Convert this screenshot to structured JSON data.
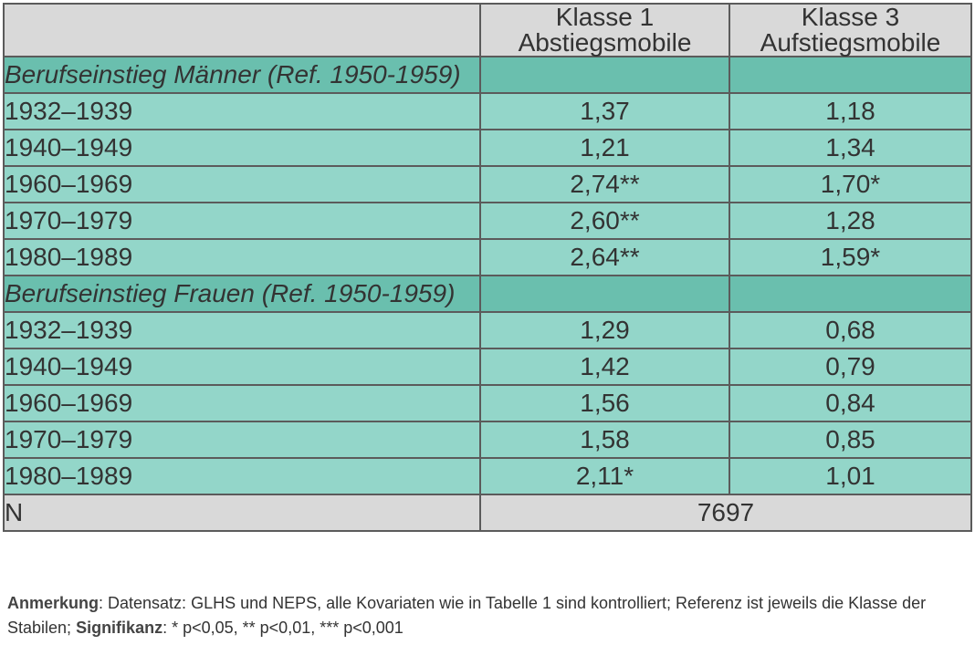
{
  "table": {
    "header": {
      "col1_line1": "Klasse 1",
      "col1_line2": "Abstiegsmobile",
      "col2_line1": "Klasse 3",
      "col2_line2": "Aufstiegsmobile"
    },
    "sections": [
      {
        "title": "Berufseinstieg Männer (Ref. 1950-1959)",
        "rows": [
          {
            "label": "1932–1939",
            "k1": "1,37",
            "k3": "1,18"
          },
          {
            "label": "1940–1949",
            "k1": "1,21",
            "k3": "1,34"
          },
          {
            "label": "1960–1969",
            "k1": "2,74**",
            "k3": "1,70*"
          },
          {
            "label": "1970–1979",
            "k1": "2,60**",
            "k3": "1,28"
          },
          {
            "label": "1980–1989",
            "k1": "2,64**",
            "k3": "1,59*"
          }
        ]
      },
      {
        "title": "Berufseinstieg Frauen (Ref. 1950-1959)",
        "rows": [
          {
            "label": "1932–1939",
            "k1": "1,29",
            "k3": "0,68"
          },
          {
            "label": "1940–1949",
            "k1": "1,42",
            "k3": "0,79"
          },
          {
            "label": "1960–1969",
            "k1": "1,56",
            "k3": "0,84"
          },
          {
            "label": "1970–1979",
            "k1": "1,58",
            "k3": "0,85"
          },
          {
            "label": "1980–1989",
            "k1": "2,11*",
            "k3": "1,01"
          }
        ]
      }
    ],
    "n_row": {
      "label": "N",
      "value": "7697"
    }
  },
  "note": {
    "anmerkung_label": "Anmerkung",
    "anmerkung_text": ": Datensatz: GLHS und NEPS, alle Kovariaten wie in Tabelle 1 sind kontrolliert; Referenz ist jeweils die Klasse der Stabilen; ",
    "signifikanz_label": "Signifikanz",
    "signifikanz_text": ": * p<0,05, ** p<0,01, *** p<0,001"
  },
  "colors": {
    "header_bg": "#d9d9d9",
    "section_bg": "#6abfae",
    "row_bg": "#93d6c9",
    "border": "#5b5b5b"
  }
}
